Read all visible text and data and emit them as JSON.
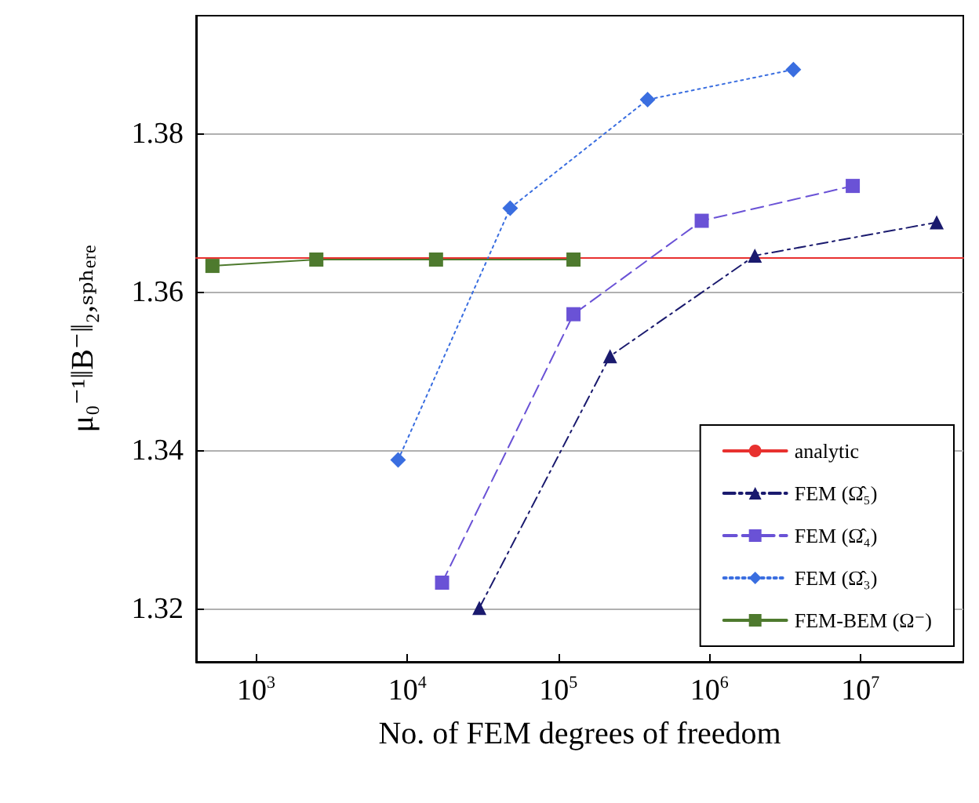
{
  "chart_data": {
    "type": "line",
    "xlabel": "No. of FEM degrees of freedom",
    "ylabel": "μ₀⁻¹‖B⁻‖₂,ₛₚₕₑᵣₑ",
    "log": "x",
    "xlim": [
      400,
      48000000
    ],
    "ylim": [
      1.3134,
      1.395
    ],
    "xticks": [
      {
        "value": 1000,
        "label": "10$^{3}$"
      },
      {
        "value": 10000,
        "label": "10$^{4}$"
      },
      {
        "value": 100000,
        "label": "10$^{5}$"
      },
      {
        "value": 1000000,
        "label": "10$^{6}$"
      },
      {
        "value": 10000000,
        "label": "10$^{7}$"
      }
    ],
    "yticks": [
      1.32,
      1.34,
      1.36,
      1.38
    ],
    "grid": "y",
    "legend": "bottom right",
    "series": [
      {
        "name": "analytic",
        "color": "#e8312f",
        "x": [
          400,
          48000000
        ],
        "values": [
          1.3644,
          1.3644
        ],
        "marker": "none",
        "line_style": "solid"
      },
      {
        "name": "FEM (Ω̂₅)",
        "color": "#1a1a6e",
        "x": [
          30000,
          220000,
          2000000,
          32000000
        ],
        "values": [
          1.3202,
          1.352,
          1.3647,
          1.3689
        ],
        "marker": "triangle",
        "line_style": "dashdot"
      },
      {
        "name": "FEM (Ω̂₄)",
        "color": "#6a52d6",
        "x": [
          17000,
          126000,
          890000,
          8900000
        ],
        "values": [
          1.3234,
          1.3573,
          1.3691,
          1.3735
        ],
        "marker": "square",
        "line_style": "dashed"
      },
      {
        "name": "FEM (Ω̂₃)",
        "color": "#3a6ee0",
        "x": [
          8700,
          48000,
          390000,
          3600000
        ],
        "values": [
          1.3389,
          1.3707,
          1.3844,
          1.3882
        ],
        "marker": "diamond",
        "line_style": "dotted"
      },
      {
        "name": "FEM-BEM (Ω⁻)",
        "color": "#4e7a2e",
        "x": [
          513,
          2500,
          15500,
          126000
        ],
        "values": [
          1.3634,
          1.3642,
          1.3642,
          1.3642
        ],
        "marker": "square",
        "line_style": "solid"
      }
    ]
  }
}
